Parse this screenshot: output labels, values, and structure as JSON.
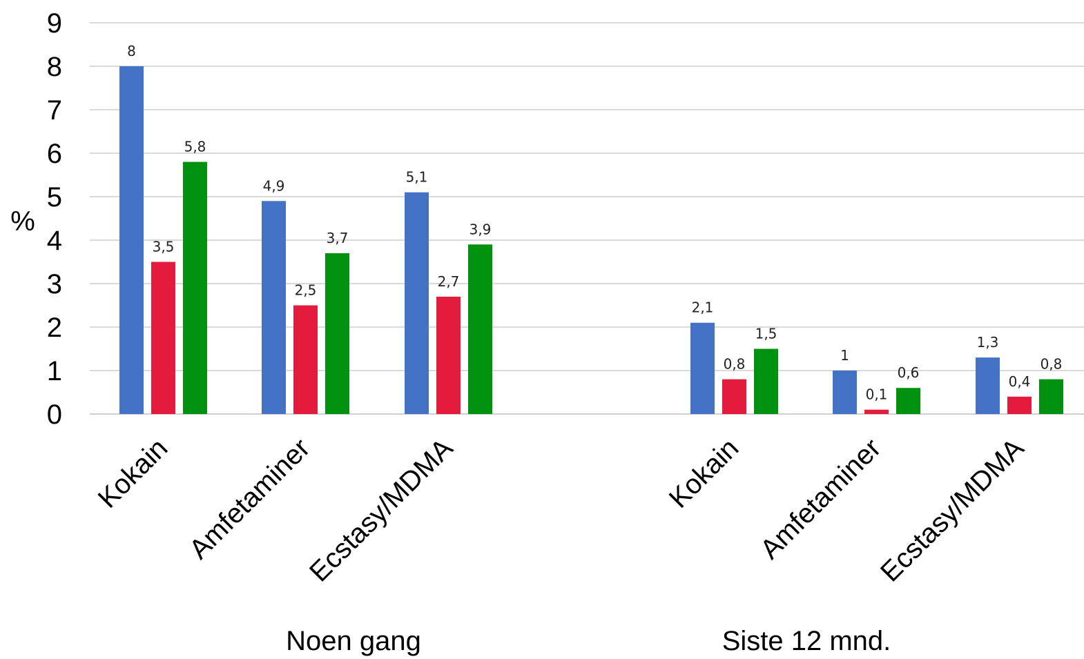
{
  "chart_data": {
    "type": "bar",
    "ylabel": "%",
    "xlabel": "",
    "title": "",
    "ylim": [
      0,
      9
    ],
    "yticks": [
      "0",
      "1",
      "2",
      "3",
      "4",
      "5",
      "6",
      "7",
      "8",
      "9"
    ],
    "grid": true,
    "legend": "none",
    "groups": [
      {
        "label": "Noen gang",
        "categories": [
          {
            "label": "Kokain",
            "values": [
              8,
              3.5,
              5.8
            ],
            "labels": [
              "8",
              "3,5",
              "5,8"
            ]
          },
          {
            "label": "Amfetaminer",
            "values": [
              4.9,
              2.5,
              3.7
            ],
            "labels": [
              "4,9",
              "2,5",
              "3,7"
            ]
          },
          {
            "label": "Ecstasy/MDMA",
            "values": [
              5.1,
              2.7,
              3.9
            ],
            "labels": [
              "5,1",
              "2,7",
              "3,9"
            ]
          }
        ]
      },
      {
        "label": "Siste 12 mnd.",
        "categories": [
          {
            "label": "Kokain",
            "values": [
              2.1,
              0.8,
              1.5
            ],
            "labels": [
              "2,1",
              "0,8",
              "1,5"
            ]
          },
          {
            "label": "Amfetaminer",
            "values": [
              1,
              0.1,
              0.6
            ],
            "labels": [
              "1",
              "0,1",
              "0,6"
            ]
          },
          {
            "label": "Ecstasy/MDMA",
            "values": [
              1.3,
              0.4,
              0.8
            ],
            "labels": [
              "1,3",
              "0,4",
              "0,8"
            ]
          }
        ]
      }
    ],
    "series_colors": [
      "#4472c4",
      "#e31b3c",
      "#00920f"
    ]
  }
}
